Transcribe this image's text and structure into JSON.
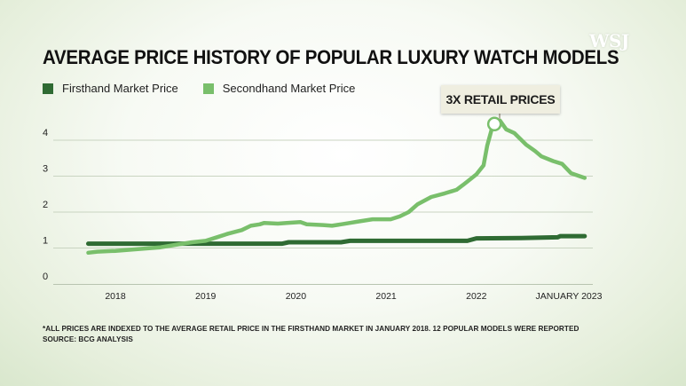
{
  "logo": "WSJ",
  "colors": {
    "firsthand": "#2f6b33",
    "secondhand": "#79bf6b"
  },
  "chart_data": {
    "type": "line",
    "title": "AVERAGE PRICE HISTORY OF POPULAR LUXURY WATCH MODELS",
    "xlabel": "",
    "ylabel": "",
    "ylim": [
      0,
      4.6
    ],
    "yticks": [
      "0",
      "1",
      "2",
      "3",
      "4"
    ],
    "xticks": [
      "2018",
      "2019",
      "2020",
      "2021",
      "2022",
      "JANUARY 2023"
    ],
    "grid": true,
    "legend_position": "top-left",
    "series": [
      {
        "name": "Firsthand Market Price",
        "color": "#2f6b33",
        "points": [
          [
            2017.7,
            1.12
          ],
          [
            2018.0,
            1.12
          ],
          [
            2019.0,
            1.12
          ],
          [
            2019.85,
            1.12
          ],
          [
            2019.92,
            1.16
          ],
          [
            2020.5,
            1.16
          ],
          [
            2020.6,
            1.2
          ],
          [
            2021.5,
            1.2
          ],
          [
            2021.9,
            1.2
          ],
          [
            2022.0,
            1.27
          ],
          [
            2022.5,
            1.28
          ],
          [
            2022.9,
            1.3
          ],
          [
            2022.93,
            1.33
          ],
          [
            2023.2,
            1.33
          ]
        ]
      },
      {
        "name": "Secondhand Market Price",
        "color": "#79bf6b",
        "points": [
          [
            2017.7,
            0.87
          ],
          [
            2017.8,
            0.9
          ],
          [
            2018.0,
            0.92
          ],
          [
            2018.2,
            0.96
          ],
          [
            2018.5,
            1.02
          ],
          [
            2018.7,
            1.1
          ],
          [
            2018.85,
            1.16
          ],
          [
            2019.0,
            1.2
          ],
          [
            2019.1,
            1.28
          ],
          [
            2019.25,
            1.4
          ],
          [
            2019.4,
            1.5
          ],
          [
            2019.5,
            1.62
          ],
          [
            2019.6,
            1.66
          ],
          [
            2019.65,
            1.7
          ],
          [
            2019.8,
            1.68
          ],
          [
            2019.9,
            1.7
          ],
          [
            2020.05,
            1.72
          ],
          [
            2020.12,
            1.66
          ],
          [
            2020.3,
            1.64
          ],
          [
            2020.4,
            1.62
          ],
          [
            2020.5,
            1.66
          ],
          [
            2020.6,
            1.7
          ],
          [
            2020.7,
            1.74
          ],
          [
            2020.85,
            1.8
          ],
          [
            2021.05,
            1.8
          ],
          [
            2021.15,
            1.88
          ],
          [
            2021.25,
            2.0
          ],
          [
            2021.35,
            2.22
          ],
          [
            2021.5,
            2.42
          ],
          [
            2021.65,
            2.52
          ],
          [
            2021.78,
            2.62
          ],
          [
            2021.85,
            2.75
          ],
          [
            2021.9,
            2.85
          ],
          [
            2022.0,
            3.05
          ],
          [
            2022.08,
            3.3
          ],
          [
            2022.12,
            3.85
          ],
          [
            2022.18,
            4.4
          ],
          [
            2022.26,
            4.55
          ],
          [
            2022.33,
            4.3
          ],
          [
            2022.42,
            4.2
          ],
          [
            2022.55,
            3.88
          ],
          [
            2022.65,
            3.7
          ],
          [
            2022.72,
            3.55
          ],
          [
            2022.85,
            3.42
          ],
          [
            2022.95,
            3.34
          ],
          [
            2023.05,
            3.08
          ],
          [
            2023.2,
            2.95
          ]
        ]
      }
    ],
    "annotations": [
      {
        "text": "3X RETAIL PRICES",
        "x": 2022.2,
        "y": 4.45
      }
    ],
    "footnotes": [
      "*ALL PRICES ARE INDEXED TO THE AVERAGE RETAIL PRICE IN THE FIRSTHAND MARKET IN JANUARY 2018. 12 POPULAR MODELS WERE REPORTED",
      "SOURCE: BCG ANALYSIS"
    ]
  }
}
